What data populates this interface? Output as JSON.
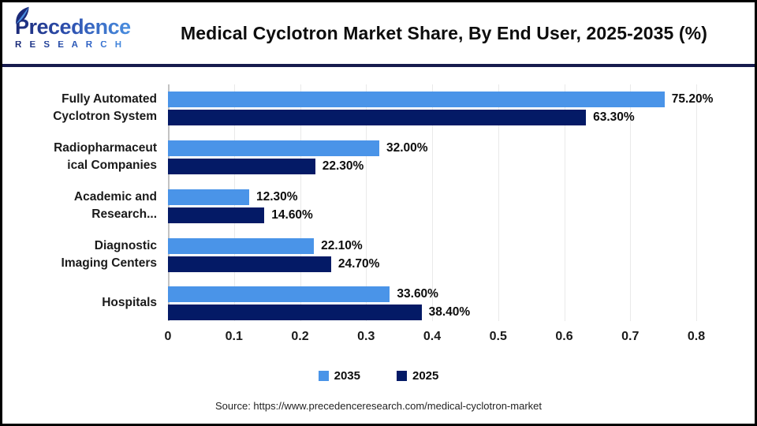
{
  "header": {
    "logo_primary": "Precedence",
    "logo_secondary": "R E S E A R C H",
    "title": "Medical Cyclotron Market Share, By End User, 2025-2035 (%)"
  },
  "chart_data": {
    "type": "bar",
    "orientation": "horizontal",
    "title": "Medical Cyclotron Market Share, By End User, 2025-2035 (%)",
    "categories": [
      "Fully Automated Cyclotron System",
      "Radiopharmaceutical Companies",
      "Academic and Research...",
      "Diagnostic Imaging Centers",
      "Hospitals"
    ],
    "category_display_lines": [
      [
        "Fully Automated",
        "Cyclotron System"
      ],
      [
        "Radiopharmaceut",
        "ical Companies"
      ],
      [
        "Academic and",
        "Research..."
      ],
      [
        "Diagnostic",
        "Imaging Centers"
      ],
      [
        "Hospitals"
      ]
    ],
    "series": [
      {
        "name": "2035",
        "color": "#4A94E8",
        "values": [
          75.2,
          32.0,
          12.3,
          22.1,
          33.6
        ],
        "value_labels": [
          "75.20%",
          "32.00%",
          "12.30%",
          "22.10%",
          "33.60%"
        ]
      },
      {
        "name": "2025",
        "color": "#041A66",
        "values": [
          63.3,
          22.3,
          14.6,
          24.7,
          38.4
        ],
        "value_labels": [
          "63.30%",
          "22.30%",
          "14.60%",
          "24.70%",
          "38.40%"
        ]
      }
    ],
    "value_axis": {
      "min": 0,
      "max": 0.8,
      "ticks": [
        "0",
        "0.1",
        "0.2",
        "0.3",
        "0.4",
        "0.5",
        "0.6",
        "0.7",
        "0.8"
      ]
    },
    "grid": true,
    "legend_position": "bottom",
    "colors": {
      "series_2035": "#4A94E8",
      "series_2025": "#041A66",
      "gridline": "#E9E9E9",
      "axis_line": "#C3C3C3",
      "header_divider": "#171B4D"
    }
  },
  "footer": {
    "source": "Source: https://www.precedenceresearch.com/medical-cyclotron-market"
  }
}
